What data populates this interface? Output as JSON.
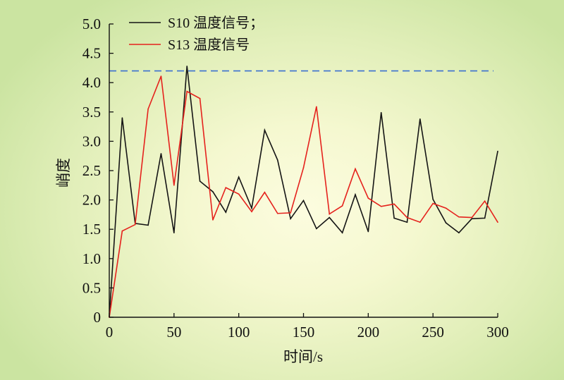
{
  "chart_data": {
    "type": "line",
    "xlabel": "时间/s",
    "ylabel": "峭度",
    "xlim": [
      0,
      300
    ],
    "ylim": [
      0,
      5
    ],
    "xticks": [
      0,
      50,
      100,
      150,
      200,
      250,
      300
    ],
    "xtick_labels": [
      "0",
      "50",
      "100",
      "150",
      "200",
      "250",
      "300"
    ],
    "yticks": [
      0,
      0.5,
      1,
      1.5,
      2,
      2.5,
      3,
      3.5,
      4,
      4.5,
      5
    ],
    "ytick_labels": [
      "0",
      "0.5",
      "1.0",
      "1.5",
      "2.0",
      "2.5",
      "3.0",
      "3.5",
      "4.0",
      "4.5",
      "5.0"
    ],
    "grid": false,
    "legend_position": "top-left",
    "axis_color": "#111111",
    "x": [
      0,
      10,
      20,
      30,
      40,
      50,
      60,
      70,
      80,
      90,
      100,
      110,
      120,
      130,
      140,
      150,
      160,
      170,
      180,
      190,
      200,
      210,
      220,
      230,
      240,
      250,
      260,
      270,
      280,
      290,
      300
    ],
    "series": [
      {
        "name": "S10 温度信号；",
        "color": "#151515",
        "values": [
          0,
          3.4,
          1.6,
          1.57,
          2.79,
          1.44,
          4.28,
          2.32,
          2.14,
          1.79,
          2.39,
          1.86,
          3.19,
          2.68,
          1.68,
          1.99,
          1.51,
          1.7,
          1.44,
          2.09,
          1.46,
          3.49,
          1.69,
          1.62,
          3.38,
          2.01,
          1.61,
          1.44,
          1.68,
          1.69,
          2.83
        ]
      },
      {
        "name": "S13 温度信号",
        "color": "#e5221d",
        "values": [
          0,
          1.47,
          1.58,
          3.55,
          4.11,
          2.25,
          3.85,
          3.73,
          1.66,
          2.21,
          2.1,
          1.8,
          2.13,
          1.77,
          1.78,
          2.55,
          3.59,
          1.76,
          1.9,
          2.53,
          2.03,
          1.89,
          1.93,
          1.7,
          1.62,
          1.94,
          1.86,
          1.71,
          1.7,
          1.98,
          1.62
        ]
      }
    ],
    "reference_lines": [
      {
        "y": 4.2,
        "color": "#3a6fd0",
        "style": "dashed"
      }
    ]
  }
}
